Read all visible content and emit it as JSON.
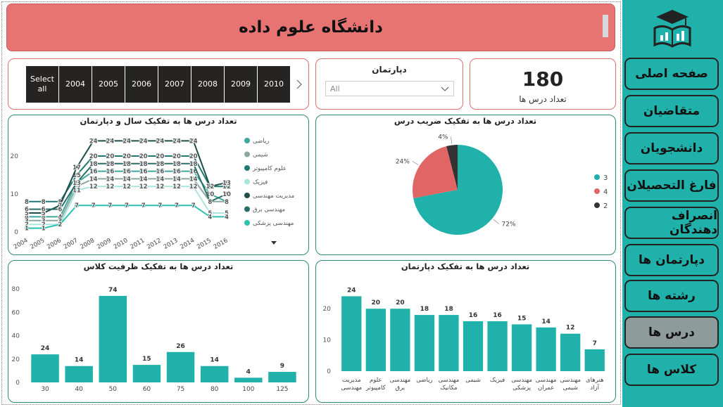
{
  "header": {
    "title": "دانشگاه علوم داده"
  },
  "year_slicer": {
    "items": [
      "Select all",
      "2004",
      "2005",
      "2006",
      "2007",
      "2008",
      "2009",
      "2010"
    ]
  },
  "department_slicer": {
    "title": "دپارتمان",
    "value": "All"
  },
  "card": {
    "value": 180,
    "label": "تعداد درس ها"
  },
  "nav": {
    "items": [
      "صفحه اصلی",
      "متقاضیان",
      "دانشجویان",
      "فارغ التحصیلان",
      "انصراف دهندگان",
      "دپارتمان ها",
      "رشته ها",
      "درس ها",
      "کلاس ها"
    ]
  },
  "chart_data": [
    {
      "type": "line",
      "title": "تعداد درس ها به تفکیک سال و دپارتمان",
      "categories": [
        "2004",
        "2005",
        "2006",
        "2007",
        "2008",
        "2009",
        "2010",
        "2011",
        "2012",
        "2013",
        "2014",
        "2015",
        "2016"
      ],
      "ylim": [
        0,
        25
      ],
      "yticks": [
        0,
        10,
        20
      ],
      "series": [
        {
          "name": "ریاضی",
          "color": "#3fa89c",
          "values": [
            4,
            4,
            4,
            13,
            16,
            16,
            16,
            16,
            16,
            16,
            16,
            10,
            8
          ]
        },
        {
          "name": "شیمی",
          "color": "#8aa8a0",
          "values": [
            3,
            3,
            3,
            12,
            14,
            14,
            14,
            14,
            14,
            14,
            14,
            8,
            8
          ]
        },
        {
          "name": "علوم کامپیوتر",
          "color": "#1f7a72",
          "values": [
            8,
            8,
            8,
            15,
            20,
            20,
            20,
            20,
            20,
            20,
            20,
            12,
            12
          ]
        },
        {
          "name": "فیزیک",
          "color": "#a8e6dd",
          "values": [
            2,
            2,
            2,
            11,
            12,
            12,
            12,
            12,
            12,
            12,
            12,
            5,
            5
          ]
        },
        {
          "name": "مدیریت مهندسی",
          "color": "#1e4d4a",
          "values": [
            5,
            5,
            7,
            17,
            24,
            24,
            24,
            24,
            24,
            24,
            24,
            12,
            13
          ]
        },
        {
          "name": "مهندسی برق",
          "color": "#2a6e68",
          "values": [
            6,
            6,
            6,
            13,
            18,
            18,
            18,
            18,
            18,
            18,
            18,
            8,
            10
          ]
        },
        {
          "name": "مهندسی پزشکی",
          "color": "#2cc0b0",
          "values": [
            1,
            1,
            2,
            7,
            7,
            7,
            7,
            7,
            7,
            7,
            7,
            4,
            4
          ]
        }
      ]
    },
    {
      "type": "pie",
      "title": "تعداد درس ها به تفکیک ضریب درس",
      "categories": [
        "3",
        "4",
        "2"
      ],
      "values": [
        72,
        24,
        4
      ],
      "value_labels": [
        "72%",
        "24%",
        "4%"
      ],
      "colors": [
        "#20b2aa",
        "#e06666",
        "#333333"
      ]
    },
    {
      "type": "bar",
      "title": "تعداد درس ها به تفکیک ظرفیت کلاس",
      "categories": [
        "30",
        "40",
        "50",
        "60",
        "75",
        "80",
        "100",
        "125"
      ],
      "values": [
        24,
        14,
        74,
        15,
        26,
        14,
        4,
        9
      ],
      "color": "#20b2aa",
      "ylim": [
        0,
        80
      ],
      "yticks": [
        0,
        20,
        40,
        60,
        80
      ]
    },
    {
      "type": "bar",
      "title": "تعداد درس ها به تفکیک دپارتمان",
      "categories": [
        "مدیریت مهندسی",
        "علوم کامپیوتر",
        "مهندسی برق",
        "ریاضی",
        "مهندسی مکانیک",
        "شیمی",
        "فیزیک",
        "مهندسی پزشکی",
        "مهندسی عمران",
        "مهندسی شیمی",
        "هنرهای آزاد"
      ],
      "values": [
        24,
        20,
        20,
        18,
        18,
        16,
        16,
        15,
        14,
        12,
        7
      ],
      "color": "#20b2aa",
      "ylim": [
        0,
        25
      ],
      "yticks": [
        0,
        10,
        20
      ]
    }
  ]
}
